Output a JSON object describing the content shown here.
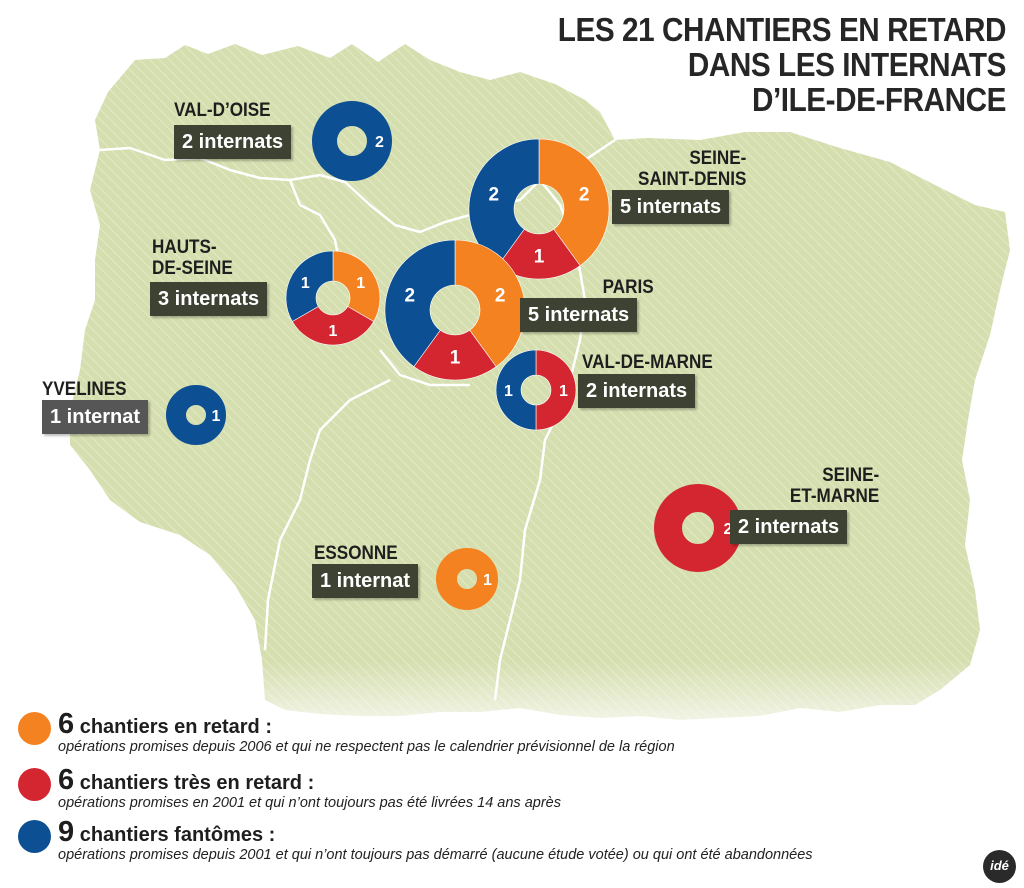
{
  "title": [
    "LES 21 CHANTIERS EN RETARD",
    "DANS LES INTERNATS",
    "D’ILE-DE-FRANCE"
  ],
  "colors": {
    "retard": "#f58220",
    "tres_retard": "#d32630",
    "fantome": "#0d4f93",
    "land": "#d5deaf",
    "label_box": "#3d4232"
  },
  "departments": [
    {
      "id": "val-d-oise",
      "name": [
        "VAL-D’OISE"
      ],
      "count": "2 internats",
      "segments": [
        {
          "cat": "fantome",
          "n": 2
        }
      ]
    },
    {
      "id": "seine-saint-denis",
      "name": [
        "SEINE-",
        "SAINT-DENIS"
      ],
      "count": "5 internats",
      "segments": [
        {
          "cat": "retard",
          "n": 2
        },
        {
          "cat": "tres_retard",
          "n": 1
        },
        {
          "cat": "fantome",
          "n": 2
        }
      ]
    },
    {
      "id": "hauts-de-seine",
      "name": [
        "HAUTS-",
        "DE-SEINE"
      ],
      "count": "3 internats",
      "segments": [
        {
          "cat": "retard",
          "n": 1
        },
        {
          "cat": "tres_retard",
          "n": 1
        },
        {
          "cat": "fantome",
          "n": 1
        }
      ]
    },
    {
      "id": "paris",
      "name": [
        "PARIS"
      ],
      "count": "5 internats",
      "segments": [
        {
          "cat": "retard",
          "n": 2
        },
        {
          "cat": "tres_retard",
          "n": 1
        },
        {
          "cat": "fantome",
          "n": 2
        }
      ]
    },
    {
      "id": "val-de-marne",
      "name": [
        "VAL-DE-MARNE"
      ],
      "count": "2 internats",
      "segments": [
        {
          "cat": "tres_retard",
          "n": 1
        },
        {
          "cat": "fantome",
          "n": 1
        }
      ]
    },
    {
      "id": "yvelines",
      "name": [
        "YVELINES"
      ],
      "count": "1 internat",
      "segments": [
        {
          "cat": "fantome",
          "n": 1
        }
      ]
    },
    {
      "id": "seine-et-marne",
      "name": [
        "SEINE-",
        "ET-MARNE"
      ],
      "count": "2 internats",
      "segments": [
        {
          "cat": "tres_retard",
          "n": 2
        }
      ]
    },
    {
      "id": "essonne",
      "name": [
        "ESSONNE"
      ],
      "count": "1 internat",
      "segments": [
        {
          "cat": "retard",
          "n": 1
        }
      ]
    }
  ],
  "legend": [
    {
      "cat": "retard",
      "count": "6",
      "label": "chantiers en retard :",
      "description": "opérations promises depuis 2006 et qui ne respectent pas le calendrier prévisionnel de la région"
    },
    {
      "cat": "tres_retard",
      "count": "6",
      "label": "chantiers très en retard :",
      "description": "opérations promises en 2001 et qui n’ont toujours pas été livrées 14 ans après"
    },
    {
      "cat": "fantome",
      "count": "9",
      "label": "chantiers fantômes :",
      "description": "opérations promises depuis 2001 et qui n’ont toujours pas démarré (aucune étude votée) ou qui ont été abandonnées"
    }
  ],
  "logo": "idé"
}
